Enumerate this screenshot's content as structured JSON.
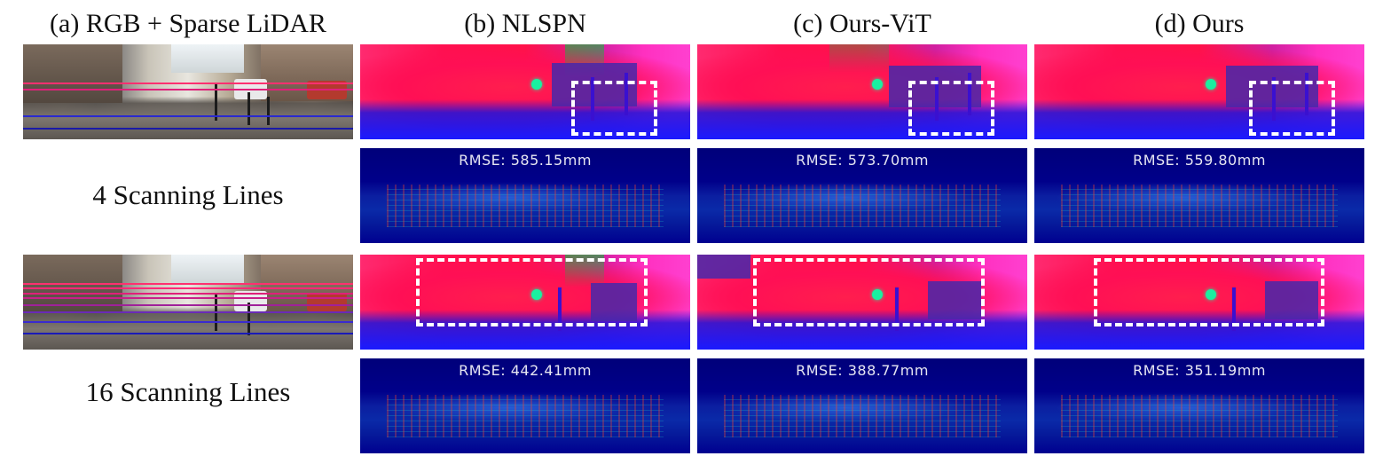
{
  "columns": [
    {
      "id": "a",
      "label": "(a) RGB + Sparse LiDAR"
    },
    {
      "id": "b",
      "label": "(b) NLSPN"
    },
    {
      "id": "c",
      "label": "(c) Ours-ViT"
    },
    {
      "id": "d",
      "label": "(d) Ours"
    }
  ],
  "rows": [
    {
      "label": "4  Scanning Lines",
      "rmse": {
        "b": "RMSE: 585.15mm",
        "c": "RMSE: 573.70mm",
        "d": "RMSE: 559.80mm"
      }
    },
    {
      "label": "16  Scanning Lines",
      "rmse": {
        "b": "RMSE: 442.41mm",
        "c": "RMSE: 388.77mm",
        "d": "RMSE: 351.19mm"
      }
    }
  ],
  "colors": {
    "depth_near": "#1a1aff",
    "depth_far": "#ff1050",
    "error_background": "#00008a",
    "highlight_box": "#ffffff"
  }
}
